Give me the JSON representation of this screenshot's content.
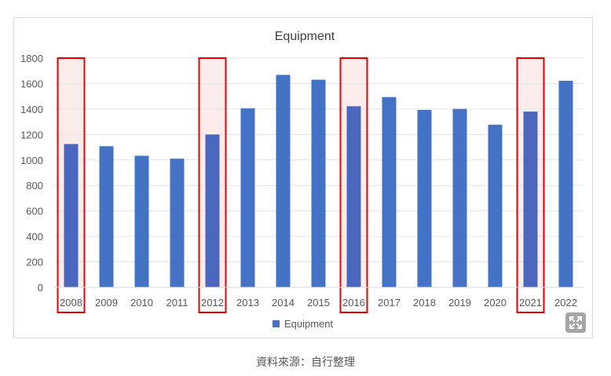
{
  "chart_data": {
    "type": "bar",
    "title": "Equipment",
    "categories": [
      "2008",
      "2009",
      "2010",
      "2011",
      "2012",
      "2013",
      "2014",
      "2015",
      "2016",
      "2017",
      "2018",
      "2019",
      "2020",
      "2021",
      "2022"
    ],
    "series": [
      {
        "name": "Equipment",
        "values": [
          1125,
          1108,
          1033,
          1010,
          1200,
          1405,
          1668,
          1630,
          1422,
          1494,
          1393,
          1401,
          1277,
          1380,
          1622
        ]
      }
    ],
    "yticks": [
      "0",
      "200",
      "400",
      "600",
      "800",
      "1000",
      "1200",
      "1400",
      "1600",
      "1800"
    ],
    "ylim": [
      0,
      1800
    ],
    "grid": true,
    "legend_position": "bottom",
    "highlighted_categories": [
      "2008",
      "2012",
      "2016",
      "2021"
    ],
    "colors": {
      "bar": "#4472c4",
      "highlight_box": "#e60000",
      "highlight_fill": "#fdecec",
      "grid": "#e6e6e6"
    }
  },
  "caption": "資料來源：自行整理",
  "expand_icon": "expand-arrows-icon"
}
